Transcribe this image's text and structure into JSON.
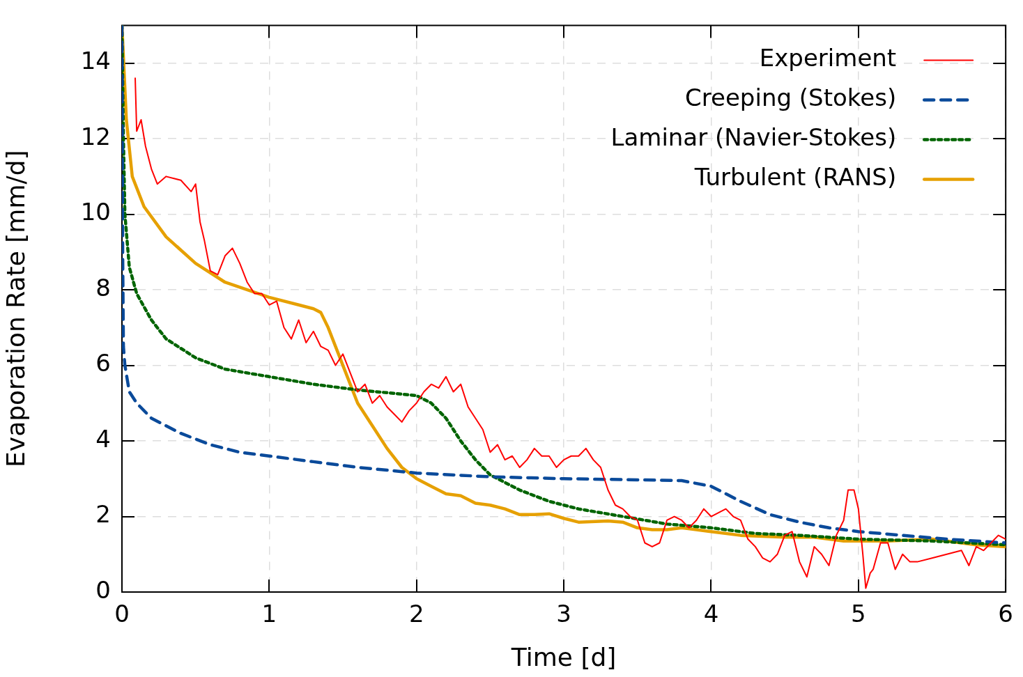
{
  "chart_data": {
    "type": "line",
    "xlabel": "Time [d]",
    "ylabel": "Evaporation Rate [mm/d]",
    "xlim": [
      0,
      6
    ],
    "xticks": [
      0,
      1,
      2,
      3,
      4,
      5,
      6
    ],
    "ylim": [
      0,
      15
    ],
    "yticks": [
      0,
      2,
      4,
      6,
      8,
      10,
      12,
      14
    ],
    "grid": true,
    "legend": "top right",
    "marker": "none",
    "series": [
      {
        "name": "Experiment",
        "color": "#ff0000",
        "line_style": "solid",
        "x": [
          0.09,
          0.1,
          0.13,
          0.16,
          0.2,
          0.24,
          0.3,
          0.4,
          0.47,
          0.5,
          0.53,
          0.56,
          0.6,
          0.65,
          0.7,
          0.75,
          0.8,
          0.85,
          0.9,
          0.95,
          1.0,
          1.05,
          1.1,
          1.15,
          1.2,
          1.25,
          1.3,
          1.35,
          1.4,
          1.45,
          1.5,
          1.55,
          1.6,
          1.65,
          1.7,
          1.75,
          1.8,
          1.85,
          1.9,
          1.95,
          2.0,
          2.05,
          2.1,
          2.15,
          2.2,
          2.25,
          2.3,
          2.35,
          2.4,
          2.45,
          2.5,
          2.55,
          2.6,
          2.65,
          2.7,
          2.75,
          2.8,
          2.85,
          2.9,
          2.95,
          3.0,
          3.05,
          3.1,
          3.15,
          3.2,
          3.25,
          3.3,
          3.35,
          3.4,
          3.45,
          3.5,
          3.55,
          3.6,
          3.65,
          3.7,
          3.75,
          3.8,
          3.85,
          3.9,
          3.95,
          4.0,
          4.05,
          4.1,
          4.15,
          4.2,
          4.25,
          4.3,
          4.35,
          4.4,
          4.45,
          4.5,
          4.55,
          4.6,
          4.65,
          4.7,
          4.75,
          4.8,
          4.85,
          4.9,
          4.93,
          4.97,
          5.0,
          5.03,
          5.05,
          5.08,
          5.1,
          5.15,
          5.2,
          5.25,
          5.3,
          5.35,
          5.4,
          5.5,
          5.6,
          5.7,
          5.75,
          5.8,
          5.85,
          5.9,
          5.95,
          6.0
        ],
        "values": [
          13.6,
          12.2,
          12.5,
          11.8,
          11.2,
          10.8,
          11.0,
          10.9,
          10.6,
          10.8,
          9.8,
          9.3,
          8.5,
          8.4,
          8.9,
          9.1,
          8.7,
          8.2,
          7.9,
          7.9,
          7.6,
          7.7,
          7.0,
          6.7,
          7.2,
          6.6,
          6.9,
          6.5,
          6.4,
          6.0,
          6.3,
          5.8,
          5.3,
          5.5,
          5.0,
          5.2,
          4.9,
          4.7,
          4.5,
          4.8,
          5.0,
          5.3,
          5.5,
          5.4,
          5.7,
          5.3,
          5.5,
          4.9,
          4.6,
          4.3,
          3.7,
          3.9,
          3.5,
          3.6,
          3.3,
          3.5,
          3.8,
          3.6,
          3.6,
          3.3,
          3.5,
          3.6,
          3.6,
          3.8,
          3.5,
          3.3,
          2.7,
          2.3,
          2.2,
          2.0,
          1.9,
          1.3,
          1.2,
          1.3,
          1.9,
          2.0,
          1.9,
          1.7,
          1.9,
          2.2,
          2.0,
          2.1,
          2.2,
          2.0,
          1.9,
          1.4,
          1.2,
          0.9,
          0.8,
          1.0,
          1.5,
          1.6,
          0.8,
          0.4,
          1.2,
          1.0,
          0.7,
          1.5,
          1.9,
          2.7,
          2.7,
          2.2,
          1.0,
          0.1,
          0.5,
          0.6,
          1.3,
          1.3,
          0.6,
          1.0,
          0.8,
          0.8,
          0.9,
          1.0,
          1.1,
          0.7,
          1.2,
          1.1,
          1.3,
          1.5,
          1.4
        ]
      },
      {
        "name": "Creeping (Stokes)",
        "color": "#0a4a9a",
        "line_style": "dashed",
        "x": [
          0,
          0.005,
          0.01,
          0.02,
          0.05,
          0.1,
          0.2,
          0.4,
          0.6,
          0.8,
          1,
          1.3,
          1.6,
          2,
          2.5,
          3,
          3.5,
          3.8,
          4.0,
          4.2,
          4.4,
          4.6,
          4.8,
          5.0,
          5.3,
          5.6,
          6
        ],
        "values": [
          15,
          9,
          6.5,
          6,
          5.3,
          5.0,
          4.6,
          4.2,
          3.9,
          3.7,
          3.6,
          3.45,
          3.3,
          3.15,
          3.05,
          3.0,
          2.97,
          2.95,
          2.8,
          2.4,
          2.05,
          1.85,
          1.7,
          1.6,
          1.5,
          1.4,
          1.3
        ]
      },
      {
        "name": "Laminar (Navier-Stokes)",
        "color": "#006400",
        "line_style": "dotted",
        "x": [
          0,
          0.01,
          0.02,
          0.05,
          0.1,
          0.2,
          0.3,
          0.5,
          0.7,
          1,
          1.3,
          1.6,
          2,
          2.1,
          2.2,
          2.3,
          2.4,
          2.5,
          2.7,
          2.9,
          3.1,
          3.4,
          3.7,
          4.0,
          4.3,
          4.6,
          5.0,
          5.5,
          6
        ],
        "values": [
          15,
          12,
          10,
          8.6,
          7.9,
          7.2,
          6.7,
          6.2,
          5.9,
          5.7,
          5.5,
          5.35,
          5.2,
          5.0,
          4.6,
          4.0,
          3.5,
          3.1,
          2.7,
          2.4,
          2.2,
          2.0,
          1.8,
          1.7,
          1.55,
          1.5,
          1.4,
          1.35,
          1.25
        ]
      },
      {
        "name": "Turbulent (RANS)",
        "color": "#e6a000",
        "line_style": "solid",
        "x": [
          0,
          0.03,
          0.07,
          0.15,
          0.3,
          0.5,
          0.7,
          1.0,
          1.2,
          1.3,
          1.35,
          1.4,
          1.5,
          1.6,
          1.7,
          1.8,
          1.9,
          2.0,
          2.1,
          2.2,
          2.3,
          2.4,
          2.5,
          2.6,
          2.7,
          2.8,
          2.9,
          3.0,
          3.1,
          3.3,
          3.4,
          3.5,
          3.6,
          3.7,
          3.8,
          4.0,
          4.2,
          4.5,
          4.7,
          4.9,
          5.2,
          5.5,
          5.8,
          6
        ],
        "values": [
          15,
          12.5,
          11,
          10.2,
          9.4,
          8.7,
          8.2,
          7.8,
          7.6,
          7.5,
          7.4,
          7.0,
          6.0,
          5.0,
          4.4,
          3.8,
          3.3,
          3.0,
          2.8,
          2.6,
          2.55,
          2.35,
          2.3,
          2.2,
          2.05,
          2.05,
          2.07,
          1.95,
          1.85,
          1.88,
          1.85,
          1.7,
          1.65,
          1.65,
          1.7,
          1.6,
          1.5,
          1.45,
          1.45,
          1.35,
          1.35,
          1.4,
          1.25,
          1.2
        ]
      }
    ]
  }
}
